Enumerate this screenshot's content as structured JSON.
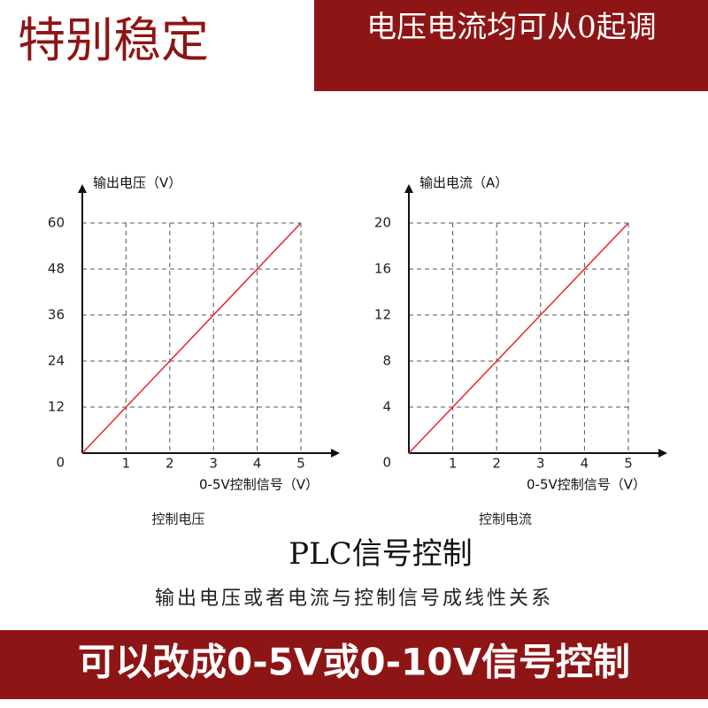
{
  "header": {
    "left": "特别稳定",
    "right": "电压电流均可从0起调"
  },
  "chart_data": [
    {
      "type": "line",
      "ylabel": "输出电压（V）",
      "xlabel": "0-5V控制信号（V）",
      "caption": "控制电压",
      "xlim": [
        0,
        5
      ],
      "xticks": [
        1,
        2,
        3,
        4,
        5
      ],
      "ylim": [
        0,
        60
      ],
      "yticks": [
        0,
        12,
        24,
        36,
        48,
        60
      ],
      "grid": true,
      "series": [
        {
          "color": "#e8242a",
          "x": [
            0,
            5
          ],
          "values": [
            0,
            60
          ]
        }
      ]
    },
    {
      "type": "line",
      "ylabel": "输出电流（A）",
      "xlabel": "0-5V控制信号（V）",
      "caption": "控制电流",
      "xlim": [
        0,
        5
      ],
      "xticks": [
        1,
        2,
        3,
        4,
        5
      ],
      "ylim": [
        0,
        20
      ],
      "yticks": [
        0,
        4,
        8,
        12,
        16,
        20
      ],
      "grid": true,
      "series": [
        {
          "color": "#e8242a",
          "x": [
            0,
            5
          ],
          "values": [
            0,
            20
          ]
        }
      ]
    }
  ],
  "middle": {
    "title": "PLC信号控制",
    "subtitle": "输出电压或者电流与控制信号成线性关系"
  },
  "footer": "可以改成0-5V或0-10V信号控制"
}
